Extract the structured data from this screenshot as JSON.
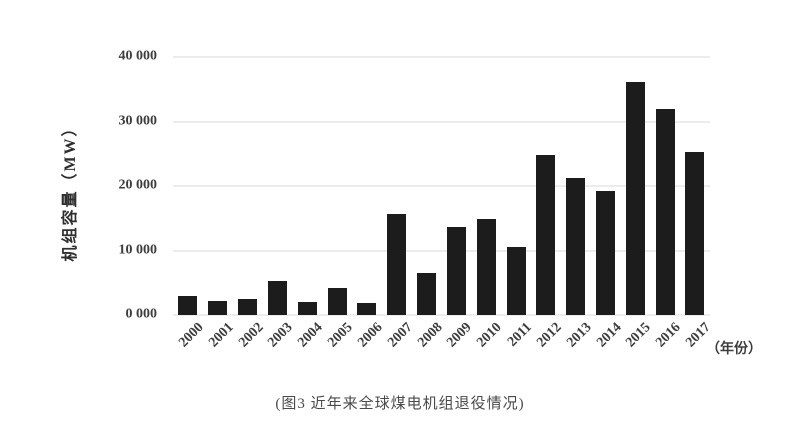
{
  "figure": {
    "caption": "(图3 近年来全球煤电机组退役情况)"
  },
  "chart_data": {
    "type": "bar",
    "title": "",
    "ylabel": "机组容量（MW）",
    "xlabel": "（年份）",
    "categories": [
      "2000",
      "2001",
      "2002",
      "2003",
      "2004",
      "2005",
      "2006",
      "2007",
      "2008",
      "2009",
      "2010",
      "2011",
      "2012",
      "2013",
      "2014",
      "2015",
      "2016",
      "2017"
    ],
    "values": [
      3000,
      2200,
      2500,
      5300,
      2000,
      4200,
      1900,
      15700,
      6500,
      13600,
      14900,
      10500,
      24800,
      21200,
      19300,
      36200,
      32000,
      25300
    ],
    "ylim": [
      0,
      40000
    ],
    "yticks": [
      {
        "value": 0,
        "label": "0 000"
      },
      {
        "value": 10000,
        "label": "10 000"
      },
      {
        "value": 20000,
        "label": "20 000"
      },
      {
        "value": 30000,
        "label": "30 000"
      },
      {
        "value": 40000,
        "label": "40 000"
      }
    ],
    "grid": true,
    "legend": "none",
    "bar_color": "#1c1c1c"
  }
}
